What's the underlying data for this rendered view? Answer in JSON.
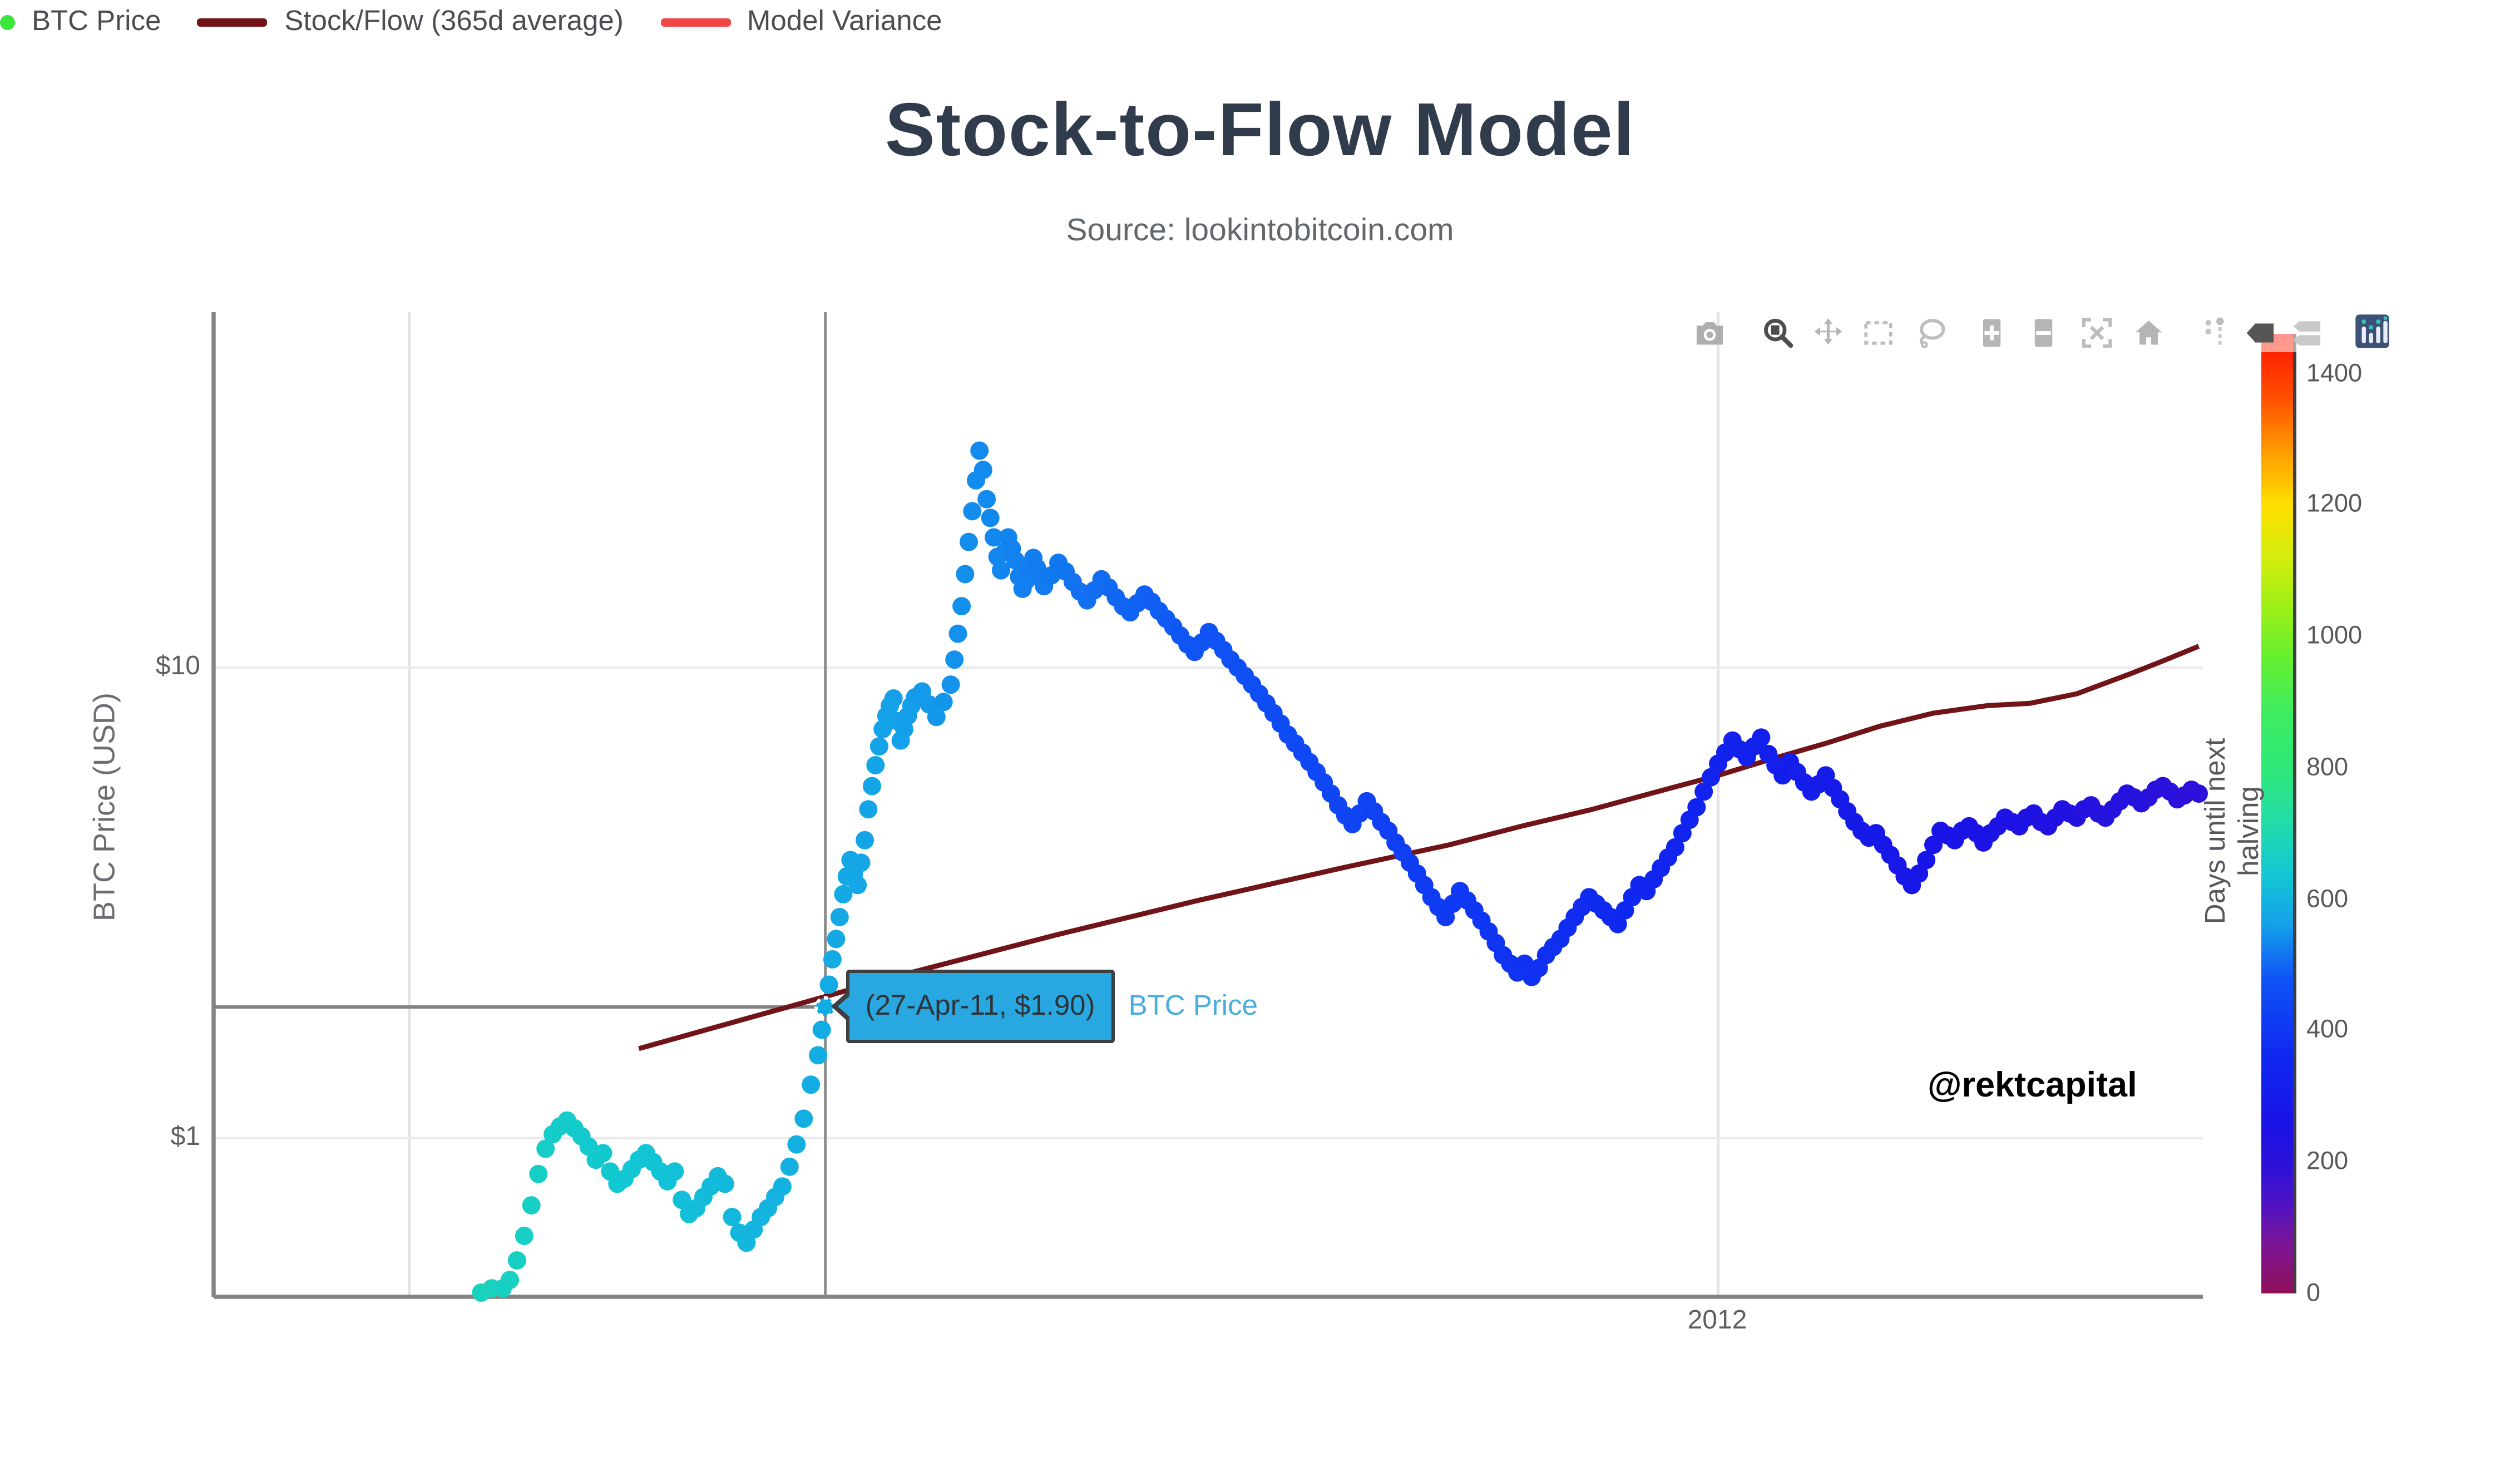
{
  "header": {
    "title": "Stock-to-Flow Model",
    "subtitle": "Source: lookintobitcoin.com"
  },
  "axes": {
    "y_title": "BTC Price (USD)",
    "y_tick_10": "$10",
    "y_tick_1": "$1",
    "x_tick_2012": "2012"
  },
  "colorbar": {
    "title": "Days until next halving",
    "ticks": [
      0,
      200,
      400,
      600,
      800,
      1000,
      1200,
      1400
    ],
    "max_value": 1460,
    "stops": [
      [
        0,
        "#8f1058"
      ],
      [
        70,
        "#7e1592"
      ],
      [
        130,
        "#5313c0"
      ],
      [
        190,
        "#2e11d8"
      ],
      [
        260,
        "#1a13e6"
      ],
      [
        360,
        "#0f28f0"
      ],
      [
        480,
        "#0f55f5"
      ],
      [
        560,
        "#14a0ea"
      ],
      [
        640,
        "#12c8d2"
      ],
      [
        720,
        "#22dda6"
      ],
      [
        800,
        "#2ee878"
      ],
      [
        880,
        "#3dec62"
      ],
      [
        960,
        "#62ef33"
      ],
      [
        1040,
        "#9aef18"
      ],
      [
        1120,
        "#d3ed0d"
      ],
      [
        1200,
        "#ffdf00"
      ],
      [
        1280,
        "#ff9c00"
      ],
      [
        1360,
        "#ff4f00"
      ],
      [
        1460,
        "#fe1400"
      ]
    ]
  },
  "tooltip": {
    "text": "(27-Apr-11, $1.90)",
    "trace_label": "BTC Price",
    "fill_color": "#29a7e0",
    "point_day_from_2011_01_01": 116,
    "point_price_usd": 1.9
  },
  "watermark": "@rektcapital",
  "legend": [
    {
      "label": "BTC Price",
      "type": "marker",
      "color": "#39e639"
    },
    {
      "label": "Stock/Flow (365d average)",
      "type": "line",
      "color": "#701418"
    },
    {
      "label": "Model Variance",
      "type": "line",
      "color": "#ef4646"
    }
  ],
  "modebar": {
    "icons": [
      "camera-icon",
      "zoom-icon",
      "pan-icon",
      "box-select-icon",
      "lasso-select-icon",
      "zoom-in-icon",
      "zoom-out-icon",
      "autoscale-icon",
      "reset-axes-home-icon",
      "toggle-spikelines-icon",
      "hover-closest-icon",
      "hover-compare-icon",
      "plotly-logo-icon"
    ],
    "active_icons": [
      "zoom-icon",
      "hover-closest-icon"
    ]
  },
  "chart_data": {
    "type": "scatter",
    "title": "Stock-to-Flow Model",
    "subtitle": "Source: lookintobitcoin.com",
    "x_axis": {
      "type": "date",
      "visible_range": [
        "2010-11-08",
        "2012-05-12"
      ],
      "gridline_days_from_2011_01_01": [
        0,
        365
      ],
      "tick_label_on_day": 365,
      "tick_label": "2012"
    },
    "y_axis": {
      "type": "log",
      "label": "BTC Price (USD)",
      "tick_prices": [
        10,
        1
      ],
      "visible_range_usd": [
        0.47,
        57
      ]
    },
    "color_by": "days_until_next_halving",
    "halving_day_from_2011_01_01": 697,
    "hover_point": {
      "day": 116,
      "price_usd": 1.9,
      "date_label": "27-Apr-11"
    },
    "btc_price_points_day_price": [
      [
        20,
        0.47
      ],
      [
        23,
        0.48
      ],
      [
        26,
        0.48
      ],
      [
        28,
        0.5
      ],
      [
        30,
        0.55
      ],
      [
        32,
        0.62
      ],
      [
        34,
        0.72
      ],
      [
        36,
        0.84
      ],
      [
        38,
        0.95
      ],
      [
        40,
        1.02
      ],
      [
        42,
        1.06
      ],
      [
        44,
        1.09
      ],
      [
        46,
        1.05
      ],
      [
        48,
        1.01
      ],
      [
        50,
        0.96
      ],
      [
        52,
        0.9
      ],
      [
        54,
        0.93
      ],
      [
        56,
        0.85
      ],
      [
        58,
        0.8
      ],
      [
        60,
        0.82
      ],
      [
        62,
        0.86
      ],
      [
        64,
        0.9
      ],
      [
        66,
        0.93
      ],
      [
        68,
        0.89
      ],
      [
        70,
        0.85
      ],
      [
        72,
        0.81
      ],
      [
        74,
        0.85
      ],
      [
        76,
        0.74
      ],
      [
        78,
        0.69
      ],
      [
        80,
        0.71
      ],
      [
        82,
        0.75
      ],
      [
        84,
        0.79
      ],
      [
        86,
        0.83
      ],
      [
        88,
        0.8
      ],
      [
        90,
        0.68
      ],
      [
        92,
        0.63
      ],
      [
        94,
        0.6
      ],
      [
        96,
        0.64
      ],
      [
        98,
        0.68
      ],
      [
        100,
        0.71
      ],
      [
        102,
        0.75
      ],
      [
        104,
        0.79
      ],
      [
        106,
        0.87
      ],
      [
        108,
        0.97
      ],
      [
        110,
        1.1
      ],
      [
        112,
        1.3
      ],
      [
        114,
        1.5
      ],
      [
        115,
        1.7
      ],
      [
        116,
        1.9
      ],
      [
        117,
        2.12
      ],
      [
        118,
        2.4
      ],
      [
        119,
        2.65
      ],
      [
        120,
        2.95
      ],
      [
        121,
        3.3
      ],
      [
        122,
        3.6
      ],
      [
        123,
        3.9
      ],
      [
        124,
        3.65
      ],
      [
        125,
        3.45
      ],
      [
        126,
        3.85
      ],
      [
        127,
        4.3
      ],
      [
        128,
        5.0
      ],
      [
        129,
        5.6
      ],
      [
        130,
        6.2
      ],
      [
        131,
        6.8
      ],
      [
        132,
        7.4
      ],
      [
        133,
        7.9
      ],
      [
        134,
        8.3
      ],
      [
        135,
        8.6
      ],
      [
        136,
        7.7
      ],
      [
        137,
        7.0
      ],
      [
        138,
        7.4
      ],
      [
        139,
        7.9
      ],
      [
        140,
        8.3
      ],
      [
        141,
        8.65
      ],
      [
        143,
        8.9
      ],
      [
        145,
        8.35
      ],
      [
        147,
        7.85
      ],
      [
        149,
        8.45
      ],
      [
        151,
        9.2
      ],
      [
        152,
        10.4
      ],
      [
        153,
        11.8
      ],
      [
        154,
        13.5
      ],
      [
        155,
        15.8
      ],
      [
        156,
        18.5
      ],
      [
        157,
        21.5
      ],
      [
        158,
        25.0
      ],
      [
        159,
        28.9
      ],
      [
        160,
        26.3
      ],
      [
        161,
        22.8
      ],
      [
        162,
        20.8
      ],
      [
        163,
        18.9
      ],
      [
        164,
        17.2
      ],
      [
        165,
        16.1
      ],
      [
        166,
        17.6
      ],
      [
        167,
        18.9
      ],
      [
        168,
        17.9
      ],
      [
        169,
        16.9
      ],
      [
        170,
        15.6
      ],
      [
        171,
        14.7
      ],
      [
        172,
        15.3
      ],
      [
        173,
        16.5
      ],
      [
        174,
        17.1
      ],
      [
        175,
        16.3
      ],
      [
        176,
        15.5
      ],
      [
        177,
        14.9
      ],
      [
        179,
        15.7
      ],
      [
        181,
        16.7
      ],
      [
        183,
        16.0
      ],
      [
        185,
        15.2
      ],
      [
        187,
        14.5
      ],
      [
        189,
        13.9
      ],
      [
        191,
        14.6
      ],
      [
        193,
        15.4
      ],
      [
        195,
        14.8
      ],
      [
        197,
        14.1
      ],
      [
        199,
        13.5
      ],
      [
        201,
        13.1
      ],
      [
        203,
        13.7
      ],
      [
        205,
        14.3
      ],
      [
        207,
        13.8
      ],
      [
        209,
        13.2
      ],
      [
        211,
        12.7
      ],
      [
        213,
        12.2
      ],
      [
        215,
        11.7
      ],
      [
        217,
        11.2
      ],
      [
        219,
        10.8
      ],
      [
        221,
        11.3
      ],
      [
        223,
        11.9
      ],
      [
        225,
        11.4
      ],
      [
        227,
        10.9
      ],
      [
        229,
        10.4
      ],
      [
        231,
        10.0
      ],
      [
        233,
        9.6
      ],
      [
        235,
        9.2
      ],
      [
        237,
        8.8
      ],
      [
        239,
        8.4
      ],
      [
        241,
        8.0
      ],
      [
        243,
        7.6
      ],
      [
        245,
        7.2
      ],
      [
        247,
        6.9
      ],
      [
        249,
        6.6
      ],
      [
        251,
        6.3
      ],
      [
        253,
        6.0
      ],
      [
        255,
        5.7
      ],
      [
        257,
        5.4
      ],
      [
        259,
        5.1
      ],
      [
        261,
        4.85
      ],
      [
        263,
        4.65
      ],
      [
        265,
        4.9
      ],
      [
        267,
        5.2
      ],
      [
        269,
        4.95
      ],
      [
        271,
        4.7
      ],
      [
        273,
        4.5
      ],
      [
        275,
        4.25
      ],
      [
        277,
        4.05
      ],
      [
        279,
        3.85
      ],
      [
        281,
        3.65
      ],
      [
        283,
        3.45
      ],
      [
        285,
        3.25
      ],
      [
        287,
        3.1
      ],
      [
        289,
        2.95
      ],
      [
        291,
        3.15
      ],
      [
        293,
        3.35
      ],
      [
        295,
        3.2
      ],
      [
        297,
        3.05
      ],
      [
        299,
        2.9
      ],
      [
        301,
        2.75
      ],
      [
        303,
        2.6
      ],
      [
        305,
        2.45
      ],
      [
        307,
        2.35
      ],
      [
        309,
        2.25
      ],
      [
        311,
        2.35
      ],
      [
        313,
        2.2
      ],
      [
        315,
        2.3
      ],
      [
        317,
        2.45
      ],
      [
        319,
        2.55
      ],
      [
        321,
        2.65
      ],
      [
        323,
        2.8
      ],
      [
        325,
        2.95
      ],
      [
        327,
        3.1
      ],
      [
        329,
        3.25
      ],
      [
        331,
        3.15
      ],
      [
        333,
        3.05
      ],
      [
        335,
        2.95
      ],
      [
        337,
        2.85
      ],
      [
        339,
        3.05
      ],
      [
        341,
        3.25
      ],
      [
        343,
        3.45
      ],
      [
        345,
        3.35
      ],
      [
        347,
        3.55
      ],
      [
        349,
        3.75
      ],
      [
        351,
        3.95
      ],
      [
        353,
        4.15
      ],
      [
        355,
        4.45
      ],
      [
        357,
        4.75
      ],
      [
        359,
        5.05
      ],
      [
        361,
        5.45
      ],
      [
        363,
        5.85
      ],
      [
        365,
        6.25
      ],
      [
        367,
        6.6
      ],
      [
        369,
        7.0
      ],
      [
        371,
        6.7
      ],
      [
        373,
        6.45
      ],
      [
        375,
        6.8
      ],
      [
        377,
        7.1
      ],
      [
        379,
        6.55
      ],
      [
        381,
        6.2
      ],
      [
        383,
        5.9
      ],
      [
        385,
        6.3
      ],
      [
        387,
        6.0
      ],
      [
        389,
        5.7
      ],
      [
        391,
        5.45
      ],
      [
        393,
        5.65
      ],
      [
        395,
        5.9
      ],
      [
        397,
        5.55
      ],
      [
        399,
        5.25
      ],
      [
        401,
        4.95
      ],
      [
        403,
        4.7
      ],
      [
        405,
        4.5
      ],
      [
        407,
        4.35
      ],
      [
        409,
        4.45
      ],
      [
        411,
        4.2
      ],
      [
        413,
        4.0
      ],
      [
        415,
        3.8
      ],
      [
        417,
        3.6
      ],
      [
        419,
        3.45
      ],
      [
        421,
        3.65
      ],
      [
        423,
        3.9
      ],
      [
        425,
        4.2
      ],
      [
        427,
        4.5
      ],
      [
        429,
        4.4
      ],
      [
        431,
        4.3
      ],
      [
        433,
        4.5
      ],
      [
        435,
        4.6
      ],
      [
        437,
        4.45
      ],
      [
        439,
        4.25
      ],
      [
        441,
        4.45
      ],
      [
        443,
        4.6
      ],
      [
        445,
        4.8
      ],
      [
        447,
        4.7
      ],
      [
        449,
        4.6
      ],
      [
        451,
        4.8
      ],
      [
        453,
        4.9
      ],
      [
        455,
        4.7
      ],
      [
        457,
        4.6
      ],
      [
        459,
        4.8
      ],
      [
        461,
        5.0
      ],
      [
        463,
        4.9
      ],
      [
        465,
        4.8
      ],
      [
        467,
        5.0
      ],
      [
        469,
        5.1
      ],
      [
        471,
        4.9
      ],
      [
        473,
        4.8
      ],
      [
        475,
        5.0
      ],
      [
        477,
        5.2
      ],
      [
        479,
        5.4
      ],
      [
        481,
        5.3
      ],
      [
        483,
        5.15
      ],
      [
        485,
        5.3
      ],
      [
        487,
        5.5
      ],
      [
        489,
        5.6
      ],
      [
        491,
        5.45
      ],
      [
        493,
        5.25
      ],
      [
        495,
        5.35
      ],
      [
        497,
        5.5
      ],
      [
        499,
        5.4
      ]
    ],
    "stock_flow_365d_line_day_price": [
      [
        64,
        1.55
      ],
      [
        100,
        1.85
      ],
      [
        140,
        2.25
      ],
      [
        180,
        2.7
      ],
      [
        220,
        3.2
      ],
      [
        260,
        3.75
      ],
      [
        290,
        4.2
      ],
      [
        310,
        4.6
      ],
      [
        330,
        5.0
      ],
      [
        350,
        5.5
      ],
      [
        365,
        5.9
      ],
      [
        380,
        6.4
      ],
      [
        395,
        6.9
      ],
      [
        410,
        7.5
      ],
      [
        425,
        8.0
      ],
      [
        440,
        8.3
      ],
      [
        452,
        8.4
      ],
      [
        465,
        8.8
      ],
      [
        480,
        9.7
      ],
      [
        490,
        10.4
      ],
      [
        499,
        11.1
      ]
    ],
    "legend_entries": [
      "BTC Price",
      "Stock/Flow (365d average)",
      "Model Variance"
    ],
    "colorbar_title": "Days until next halving",
    "colorbar_ticks": [
      0,
      200,
      400,
      600,
      800,
      1000,
      1200,
      1400
    ]
  }
}
